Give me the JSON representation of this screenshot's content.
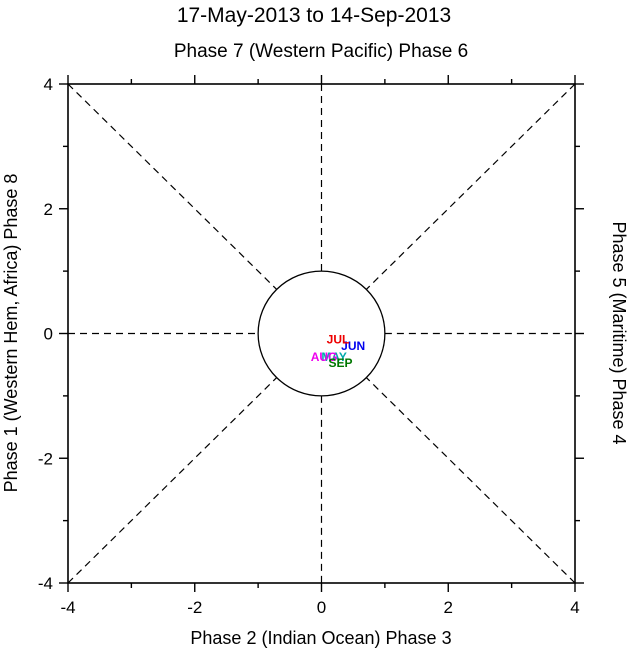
{
  "title": "17-May-2013 to 14-Sep-2013",
  "axes_labels": {
    "top": "Phase 7 (Western Pacific) Phase 6",
    "bottom": "Phase 2 (Indian Ocean) Phase 3",
    "left": "Phase 1 (Western Hem, Africa) Phase 8",
    "right": "Phase 5 (Maritime) Phase 4"
  },
  "chart_data": {
    "type": "scatter",
    "title": "17-May-2013 to 14-Sep-2013",
    "subtitle": "Phase 7 (Western Pacific) Phase 6",
    "xlabel": "Phase 2 (Indian Ocean) Phase 3",
    "ylabel": "Phase 1 (Western Hem, Africa) Phase 8",
    "ylabel_right": "Phase 5 (Maritime) Phase 4",
    "xlim": [
      -4,
      4
    ],
    "ylim": [
      -4,
      4
    ],
    "xticks": [
      -4,
      -2,
      0,
      2,
      4
    ],
    "yticks": [
      -4,
      -2,
      0,
      2,
      4
    ],
    "minor_tick_step": 1,
    "grid": false,
    "unit_circle_radius": 1,
    "phase_guides": "dashed lines along x=0, y=0, y=x, y=-x stopping at unit circle",
    "month_labels": [
      {
        "label": "MAY",
        "color": "#00aaaa",
        "x": 0.2,
        "y": -0.38
      },
      {
        "label": "JUN",
        "color": "#0000ee",
        "x": 0.5,
        "y": -0.2
      },
      {
        "label": "JUL",
        "color": "#ee0000",
        "x": 0.26,
        "y": -0.1
      },
      {
        "label": "AUG",
        "color": "#ee00ee",
        "x": 0.04,
        "y": -0.38
      },
      {
        "label": "SEP",
        "color": "#007700",
        "x": 0.3,
        "y": -0.47
      }
    ]
  },
  "colors": {
    "frame": "#000000",
    "dashed": "#000000",
    "background": "#ffffff"
  }
}
